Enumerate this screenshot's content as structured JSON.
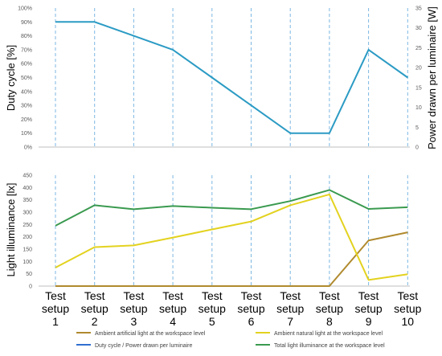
{
  "chart_data": [
    {
      "type": "line",
      "ylabel": "Duty cycle [%]",
      "y2label": "Power drawn per luminaire [W]",
      "ylim": [
        0,
        100
      ],
      "y2lim": [
        0,
        35
      ],
      "yticks": [
        "0%",
        "10%",
        "20%",
        "30%",
        "40%",
        "50%",
        "60%",
        "70%",
        "80%",
        "90%",
        "100%"
      ],
      "y2ticks": [
        "0",
        "5",
        "10",
        "15",
        "20",
        "25",
        "30",
        "35"
      ],
      "grid": "dashed vertical lines at each test setup",
      "x": [
        1,
        2,
        3,
        4,
        5,
        6,
        7,
        8,
        9,
        10
      ],
      "series": [
        {
          "name": "Duty cycle / Power drawn per luminaire",
          "color": "#2b9bc4",
          "values": [
            90,
            90,
            80,
            70,
            50,
            30,
            10,
            10,
            70,
            50
          ]
        }
      ]
    },
    {
      "type": "line",
      "ylabel": "Light illuminance [lx]",
      "ylim": [
        0,
        450
      ],
      "yticks": [
        "0",
        "50",
        "100",
        "150",
        "200",
        "250",
        "300",
        "350",
        "400",
        "450"
      ],
      "grid": "dashed vertical lines at each test setup",
      "x": [
        1,
        2,
        3,
        4,
        5,
        6,
        7,
        8,
        9,
        10
      ],
      "categories": [
        [
          "Test",
          "setup",
          "1"
        ],
        [
          "Test",
          "setup",
          "2"
        ],
        [
          "Test",
          "setup",
          "3"
        ],
        [
          "Test",
          "setup",
          "4"
        ],
        [
          "Test",
          "setup",
          "5"
        ],
        [
          "Test",
          "setup",
          "6"
        ],
        [
          "Test",
          "setup",
          "7"
        ],
        [
          "Test",
          "setup",
          "8"
        ],
        [
          "Test",
          "setup",
          "9"
        ],
        [
          "Test",
          "setup",
          "10"
        ]
      ],
      "series": [
        {
          "name": "Ambient artificial light at the workspace level",
          "color": "#b08a2e",
          "values": [
            0,
            0,
            0,
            0,
            0,
            0,
            0,
            0,
            185,
            218
          ]
        },
        {
          "name": "Ambient natural light at the workspace level",
          "color": "#e3d21f",
          "values": [
            75,
            158,
            165,
            197,
            230,
            262,
            328,
            372,
            25,
            48
          ]
        },
        {
          "name": "Total light illuminance at the workspace level",
          "color": "#3a9a4f",
          "values": [
            245,
            328,
            312,
            325,
            318,
            312,
            345,
            390,
            313,
            320
          ]
        }
      ],
      "legend": {
        "placement": "bottom",
        "items": [
          {
            "label": "Ambient artificial light at the workspace level",
            "color": "#b08a2e"
          },
          {
            "label": "Ambient natural light at the workspace level",
            "color": "#e3d21f"
          },
          {
            "label": "Duty cycle / Power drawn per luminaire",
            "color": "#2f6fd0"
          },
          {
            "label": "Total light illuminance at the workspace level",
            "color": "#3a9a4f"
          }
        ]
      }
    }
  ],
  "colors": {
    "grid_line": "#7cb7e3",
    "axis": "#bfbfbf"
  }
}
